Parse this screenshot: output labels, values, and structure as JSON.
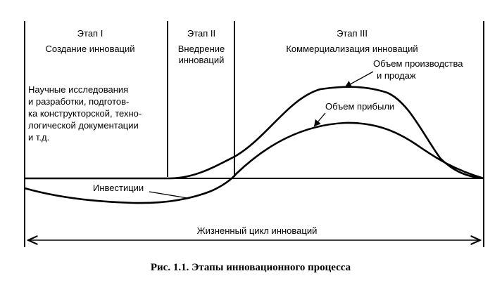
{
  "stages": [
    {
      "title": "Этап I",
      "name": "Создание инноваций"
    },
    {
      "title": "Этап II",
      "name_lines": [
        "Внедрение",
        "инноваций"
      ]
    },
    {
      "title": "Этап III",
      "name": "Коммерциализация инноваций"
    }
  ],
  "stage1_description": [
    "Научные исследования",
    "и разработки, подготов-",
    "ка конструкторской, техно-",
    "логической документации",
    "и т.д."
  ],
  "curves": {
    "sales_label": [
      "Объем производства",
      "и продаж"
    ],
    "profit_label": "Объем прибыли",
    "investment_label": "Инвестиции"
  },
  "lifecycle_label": "Жизненный цикл инноваций",
  "caption": "Рис. 1.1. Этапы инновационного процесса"
}
